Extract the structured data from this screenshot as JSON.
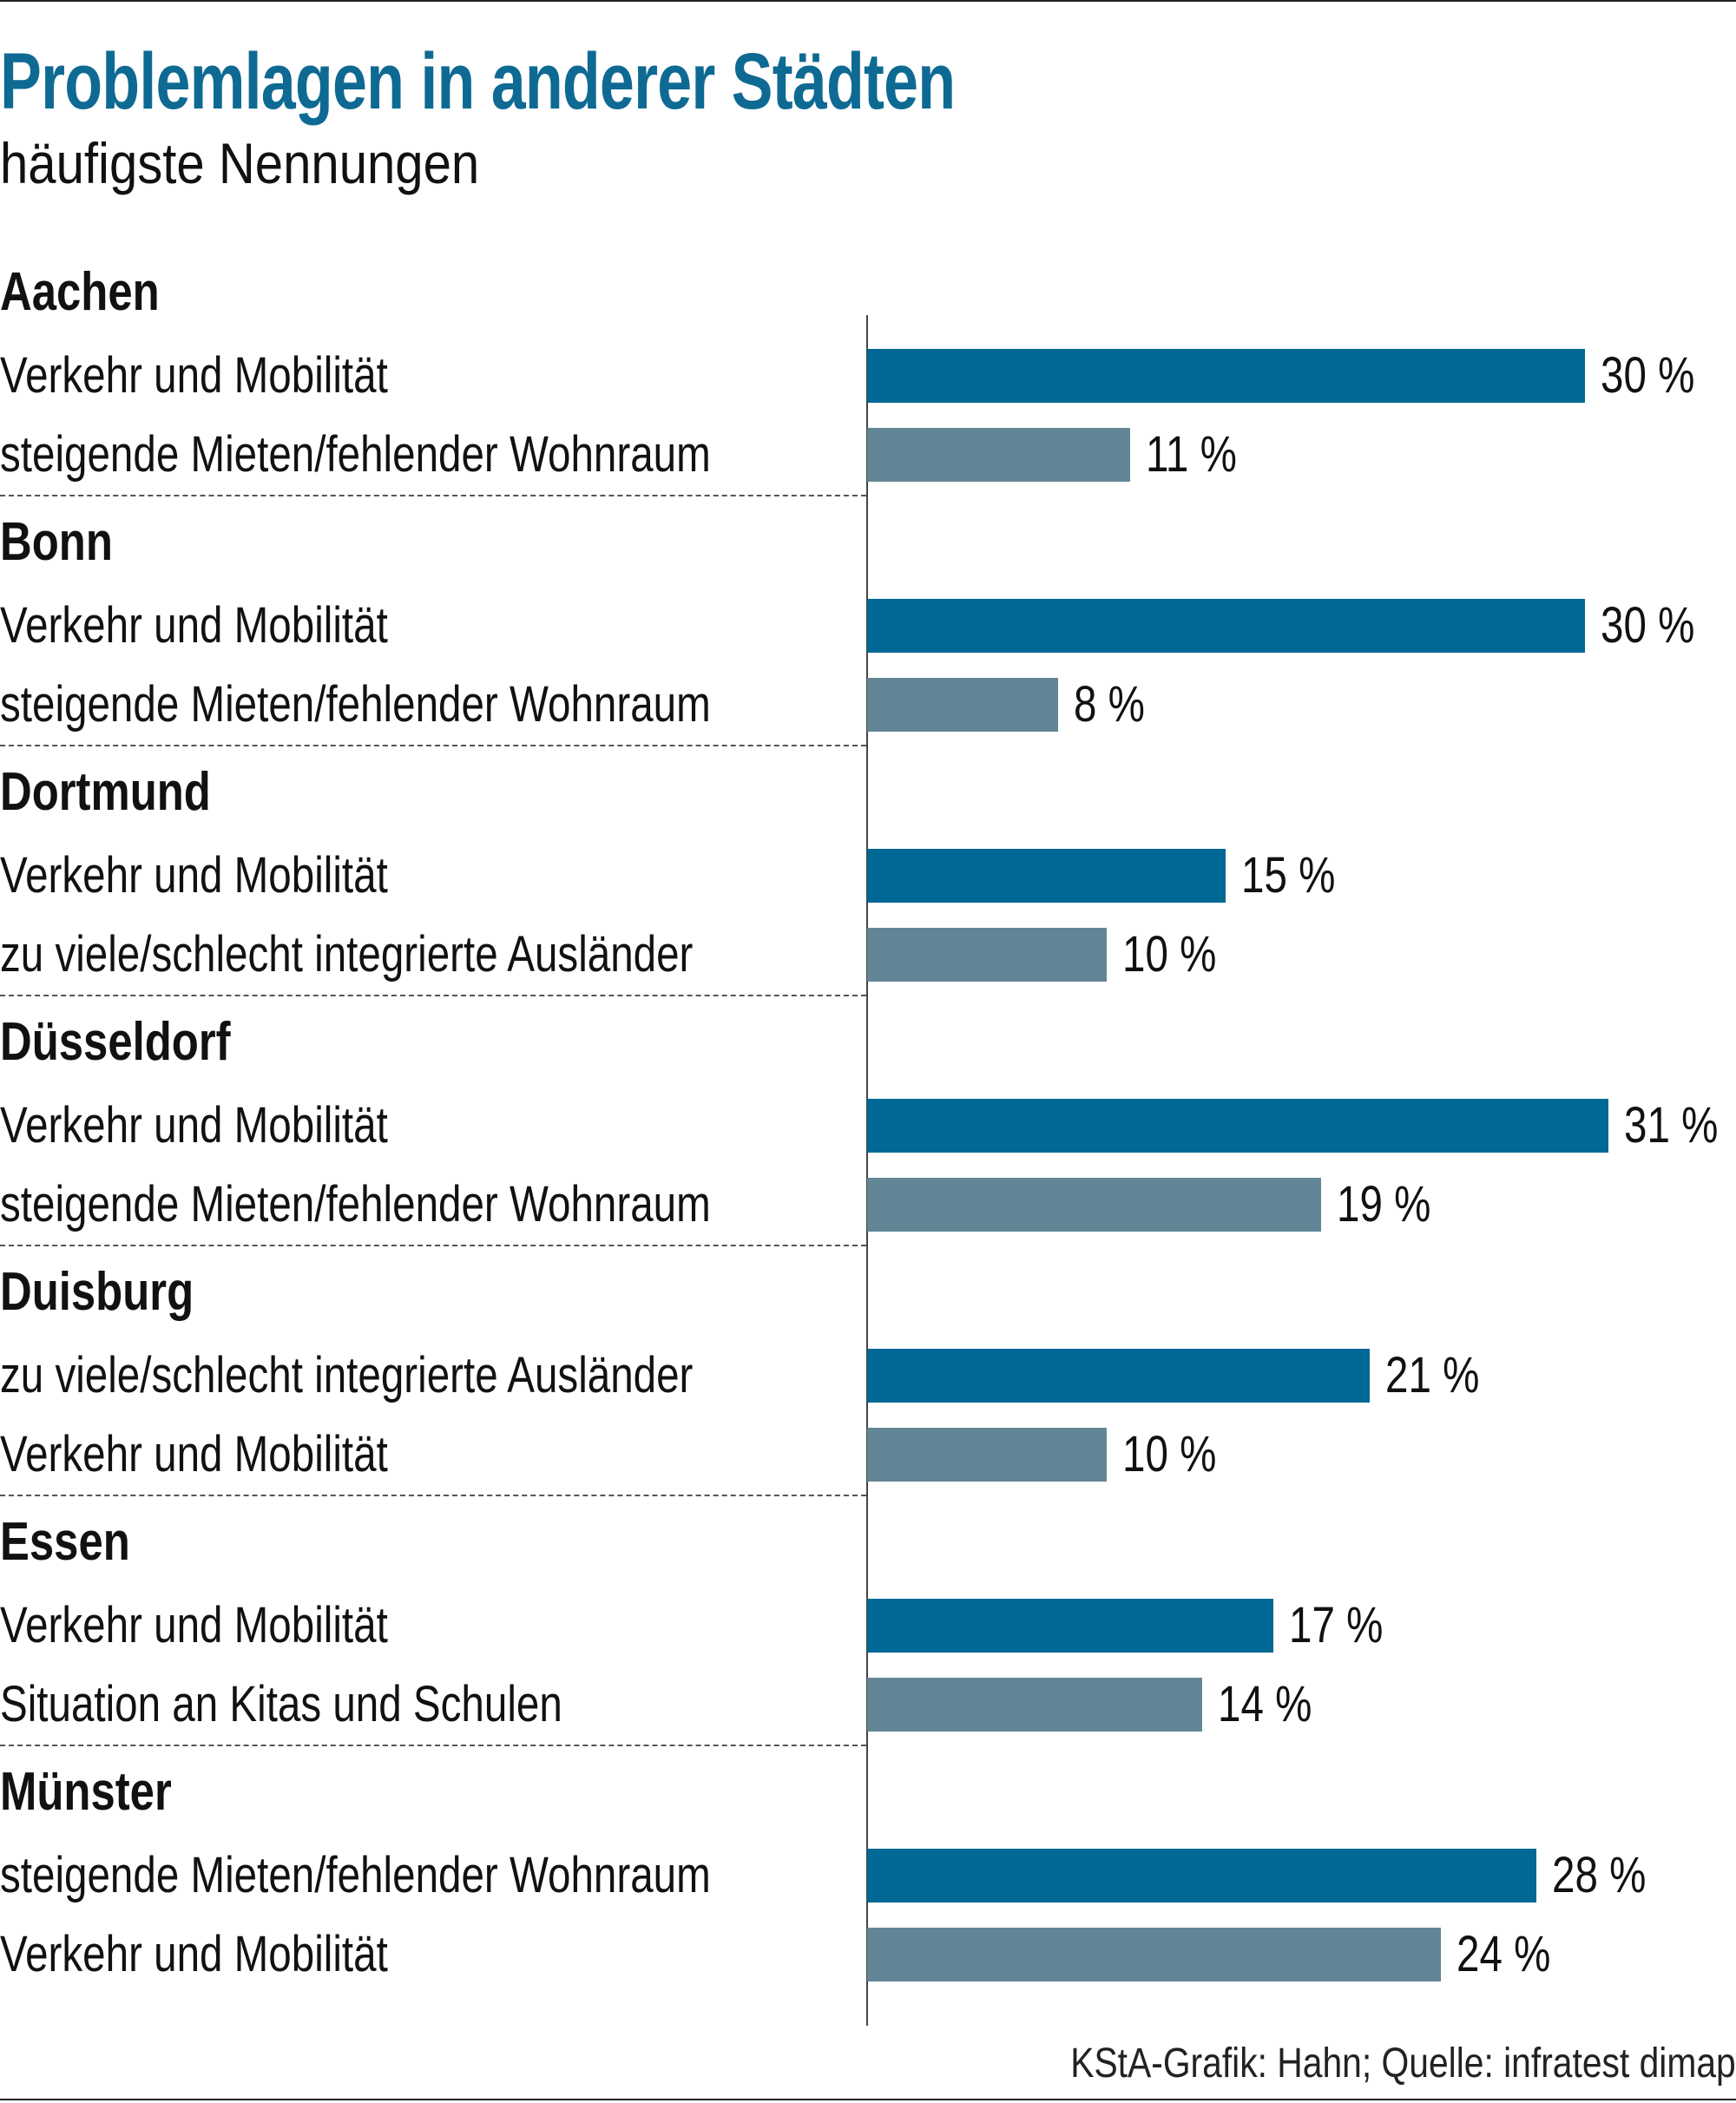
{
  "chart_data": {
    "type": "bar",
    "orientation": "horizontal",
    "title": "Problemlagen in anderer Städten",
    "subtitle": "häufigste Nennungen",
    "source": "KStA-Grafik: Hahn; Quelle: infratest dimap",
    "unit": "%",
    "colors": {
      "first": "#006894",
      "second": "#628696",
      "title": "#0e6a93"
    },
    "groups": [
      {
        "city": "Aachen",
        "items": [
          {
            "label": "Verkehr und Mobilität",
            "value": 30,
            "text": "30 %"
          },
          {
            "label": "steigende Mieten/fehlender Wohnraum",
            "value": 11,
            "text": "11 %"
          }
        ]
      },
      {
        "city": "Bonn",
        "items": [
          {
            "label": "Verkehr und Mobilität",
            "value": 30,
            "text": "30 %"
          },
          {
            "label": "steigende Mieten/fehlender Wohnraum",
            "value": 8,
            "text": "8 %"
          }
        ]
      },
      {
        "city": "Dortmund",
        "items": [
          {
            "label": "Verkehr und Mobilität",
            "value": 15,
            "text": "15 %"
          },
          {
            "label": "zu viele/schlecht integrierte Ausländer",
            "value": 10,
            "text": "10 %"
          }
        ]
      },
      {
        "city": "Düsseldorf",
        "items": [
          {
            "label": "Verkehr und Mobilität",
            "value": 31,
            "text": "31 %"
          },
          {
            "label": "steigende Mieten/fehlender Wohnraum",
            "value": 19,
            "text": "19 %"
          }
        ]
      },
      {
        "city": "Duisburg",
        "items": [
          {
            "label": "zu viele/schlecht integrierte Ausländer",
            "value": 21,
            "text": "21 %"
          },
          {
            "label": "Verkehr und Mobilität",
            "value": 10,
            "text": "10 %"
          }
        ]
      },
      {
        "city": "Essen",
        "items": [
          {
            "label": "Verkehr und Mobilität",
            "value": 17,
            "text": "17 %"
          },
          {
            "label": "Situation an Kitas und Schulen",
            "value": 14,
            "text": "14 %"
          }
        ]
      },
      {
        "city": "Münster",
        "items": [
          {
            "label": "steigende Mieten/fehlender Wohnraum",
            "value": 28,
            "text": "28 %"
          },
          {
            "label": "Verkehr und Mobilität",
            "value": 24,
            "text": "24 %"
          }
        ]
      }
    ]
  }
}
